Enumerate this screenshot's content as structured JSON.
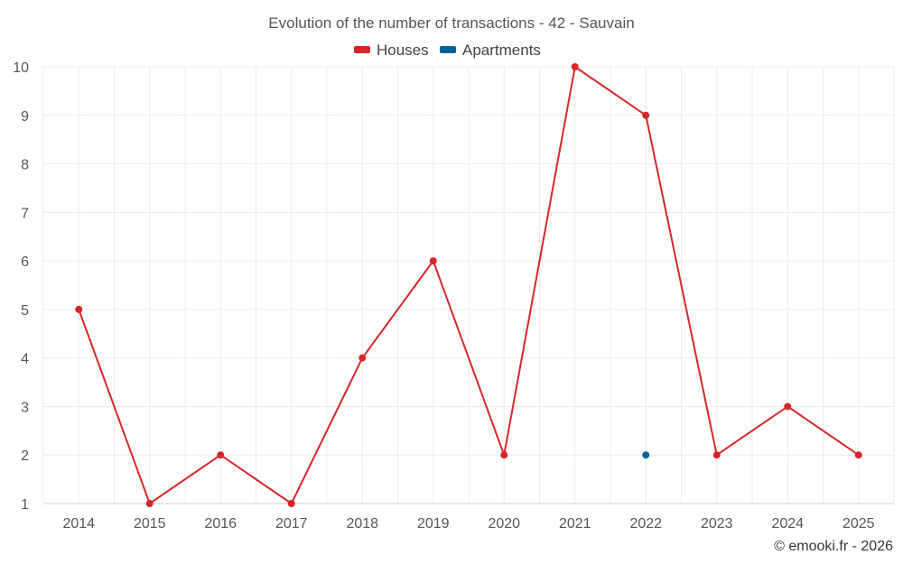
{
  "chart_data": {
    "type": "line",
    "title": "Evolution of the number of transactions - 42 - Sauvain",
    "xlabel": "",
    "ylabel": "",
    "categories": [
      "2014",
      "2015",
      "2016",
      "2017",
      "2018",
      "2019",
      "2020",
      "2021",
      "2022",
      "2023",
      "2024",
      "2025"
    ],
    "ylim": [
      1,
      10
    ],
    "yticks": [
      1,
      2,
      3,
      4,
      5,
      6,
      7,
      8,
      9,
      10
    ],
    "grid": true,
    "legend_position": "top-center",
    "series": [
      {
        "name": "Houses",
        "color": "#d62728",
        "values": [
          5,
          1,
          2,
          1,
          4,
          6,
          2,
          10,
          9,
          2,
          3,
          2
        ]
      },
      {
        "name": "Apartments",
        "color": "#00629b",
        "values": [
          null,
          null,
          null,
          null,
          null,
          null,
          null,
          null,
          2,
          null,
          null,
          null
        ]
      }
    ]
  },
  "credit": "© emooki.fr - 2026"
}
